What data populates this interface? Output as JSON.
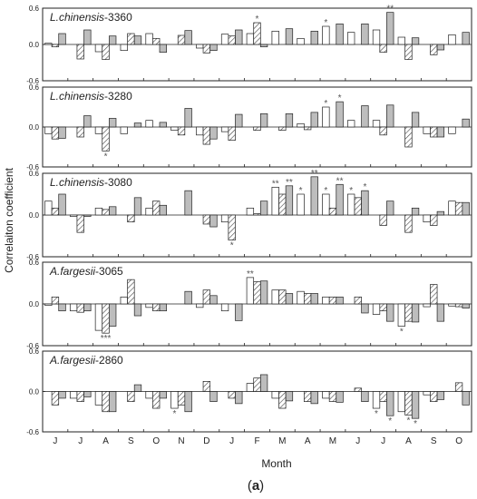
{
  "figure": {
    "ylabel": "Correlaiton coefficient",
    "xlabel": "Month",
    "caption": "(a)",
    "caption_bold_letter": "a",
    "colors": {
      "white": "#ffffff",
      "gray": "#bdbdbd",
      "hatch": "#444444",
      "frame": "#222222",
      "star": "#555555"
    }
  },
  "chart_data": [
    {
      "type": "bar",
      "title": "L.chinensis-3360",
      "title_species": "L.chinensis",
      "title_suffix": "-3360",
      "categories": [
        "J",
        "J",
        "A",
        "S",
        "O",
        "N",
        "D",
        "J",
        "F",
        "M",
        "A",
        "M",
        "J",
        "J",
        "A",
        "S",
        "O"
      ],
      "ylim": [
        -0.6,
        0.6
      ],
      "yticks": [
        "0.6",
        "0.0",
        "-0.6"
      ],
      "series": [
        {
          "pattern": "white",
          "values": [
            0.02,
            0.0,
            -0.12,
            -0.1,
            0.18,
            0.0,
            -0.06,
            0.17,
            0.18,
            0.22,
            0.1,
            0.3,
            0.2,
            0.24,
            0.12,
            0.0,
            0.16
          ]
        },
        {
          "pattern": "hatched",
          "values": [
            -0.04,
            -0.24,
            -0.25,
            0.18,
            0.1,
            0.15,
            -0.14,
            0.14,
            0.36,
            0.0,
            0.0,
            0.0,
            0.0,
            -0.13,
            -0.25,
            -0.17,
            0.0
          ]
        },
        {
          "pattern": "gray",
          "values": [
            0.18,
            0.24,
            0.14,
            0.14,
            -0.13,
            0.23,
            -0.1,
            0.24,
            -0.04,
            0.26,
            0.22,
            0.34,
            0.34,
            0.53,
            0.11,
            -0.09,
            0.2
          ]
        }
      ],
      "significance": [
        {
          "category_index": 8,
          "series": 1,
          "label": "*"
        },
        {
          "category_index": 11,
          "series": 0,
          "label": "*"
        },
        {
          "category_index": 13,
          "series": 2,
          "label": "**"
        }
      ]
    },
    {
      "type": "bar",
      "title": "L.chinensis-3280",
      "title_species": "L.chinensis",
      "title_suffix": "-3280",
      "categories": [
        "J",
        "J",
        "A",
        "S",
        "O",
        "N",
        "D",
        "J",
        "F",
        "M",
        "A",
        "M",
        "J",
        "J",
        "A",
        "S",
        "O"
      ],
      "ylim": [
        -0.6,
        0.6
      ],
      "yticks": [
        "0.6",
        "0.0",
        "-0.6"
      ],
      "series": [
        {
          "pattern": "white",
          "values": [
            -0.1,
            0.0,
            -0.1,
            -0.1,
            0.1,
            -0.05,
            -0.12,
            -0.07,
            0.0,
            0.0,
            0.05,
            0.3,
            0.1,
            0.1,
            0.0,
            -0.1,
            -0.1
          ]
        },
        {
          "pattern": "hatched",
          "values": [
            -0.18,
            -0.15,
            -0.36,
            0.0,
            0.0,
            -0.12,
            -0.26,
            -0.2,
            -0.05,
            -0.05,
            -0.04,
            0.0,
            0.0,
            -0.12,
            -0.3,
            -0.15,
            0.0
          ]
        },
        {
          "pattern": "gray",
          "values": [
            -0.17,
            0.17,
            0.13,
            0.06,
            0.07,
            0.28,
            -0.18,
            0.19,
            0.2,
            0.2,
            0.22,
            0.38,
            0.32,
            0.33,
            0.22,
            -0.15,
            0.12
          ]
        }
      ],
      "significance": [
        {
          "category_index": 2,
          "series": 1,
          "label": "*"
        },
        {
          "category_index": 11,
          "series": 0,
          "label": "*"
        },
        {
          "category_index": 11,
          "series": 2,
          "label": "*"
        }
      ]
    },
    {
      "type": "bar",
      "title": "L.chinensis-3080",
      "title_species": "L.chinensis",
      "title_suffix": "-3080",
      "categories": [
        "J",
        "J",
        "A",
        "S",
        "O",
        "N",
        "D",
        "J",
        "F",
        "M",
        "A",
        "M",
        "J",
        "J",
        "A",
        "S",
        "O"
      ],
      "ylim": [
        -0.6,
        0.6
      ],
      "yticks": [
        "0.6",
        "0.0",
        "-0.6"
      ],
      "series": [
        {
          "pattern": "white",
          "values": [
            0.2,
            -0.02,
            0.1,
            0.0,
            0.1,
            0.0,
            0.0,
            -0.1,
            0.1,
            0.4,
            0.3,
            0.3,
            0.3,
            0.0,
            0.0,
            -0.1,
            0.2
          ]
        },
        {
          "pattern": "hatched",
          "values": [
            0.1,
            -0.25,
            0.08,
            -0.1,
            0.2,
            0.0,
            -0.13,
            -0.36,
            0.02,
            0.3,
            0.0,
            0.1,
            0.25,
            -0.15,
            -0.25,
            -0.15,
            0.18
          ]
        },
        {
          "pattern": "gray",
          "values": [
            0.3,
            -0.02,
            0.12,
            0.25,
            0.14,
            0.35,
            -0.17,
            0.0,
            0.2,
            0.42,
            0.55,
            0.44,
            0.35,
            0.2,
            0.1,
            0.05,
            0.18
          ]
        }
      ],
      "significance": [
        {
          "category_index": 7,
          "series": 1,
          "label": "*"
        },
        {
          "category_index": 9,
          "series": 0,
          "label": "**"
        },
        {
          "category_index": 9,
          "series": 2,
          "label": "**"
        },
        {
          "category_index": 10,
          "series": 0,
          "label": "*"
        },
        {
          "category_index": 10,
          "series": 2,
          "label": "**"
        },
        {
          "category_index": 11,
          "series": 0,
          "label": "*"
        },
        {
          "category_index": 11,
          "series": 2,
          "label": "**"
        },
        {
          "category_index": 12,
          "series": 0,
          "label": "*"
        },
        {
          "category_index": 12,
          "series": 2,
          "label": "*"
        }
      ]
    },
    {
      "type": "bar",
      "title": "A.fargesii-3065",
      "title_species": "A.fargesii",
      "title_suffix": "-3065",
      "categories": [
        "J",
        "J",
        "A",
        "S",
        "O",
        "N",
        "D",
        "J",
        "F",
        "M",
        "A",
        "M",
        "J",
        "J",
        "A",
        "S",
        "O"
      ],
      "ylim": [
        -0.6,
        0.6
      ],
      "yticks": [
        "0.6",
        "0.0",
        "-0.6"
      ],
      "series": [
        {
          "pattern": "white",
          "values": [
            -0.02,
            -0.1,
            -0.38,
            0.1,
            -0.05,
            0.0,
            -0.05,
            -0.1,
            0.38,
            0.2,
            0.18,
            0.1,
            0.0,
            -0.15,
            -0.32,
            -0.04,
            -0.03
          ]
        },
        {
          "pattern": "hatched",
          "values": [
            0.1,
            -0.12,
            -0.42,
            0.35,
            -0.1,
            0.0,
            0.2,
            0.0,
            0.32,
            0.2,
            0.15,
            0.1,
            0.1,
            -0.1,
            -0.25,
            0.28,
            -0.04
          ]
        },
        {
          "pattern": "gray",
          "values": [
            -0.1,
            -0.1,
            -0.32,
            -0.17,
            -0.1,
            0.18,
            0.12,
            -0.24,
            0.33,
            0.15,
            0.15,
            0.1,
            -0.13,
            -0.25,
            -0.26,
            -0.25,
            -0.06
          ]
        }
      ],
      "significance": [
        {
          "category_index": 2,
          "series": 1,
          "label": "***"
        },
        {
          "category_index": 8,
          "series": 0,
          "label": "**"
        },
        {
          "category_index": 14,
          "series": 0,
          "label": "*"
        }
      ]
    },
    {
      "type": "bar",
      "title": "A.fargesii-2860",
      "title_species": "A.fargesii",
      "title_suffix": "-2860",
      "categories": [
        "J",
        "J",
        "A",
        "S",
        "O",
        "N",
        "D",
        "J",
        "F",
        "M",
        "A",
        "M",
        "J",
        "J",
        "A",
        "S",
        "O"
      ],
      "ylim": [
        -0.6,
        0.6
      ],
      "yticks": [
        "0.6",
        "0.0",
        "-0.6"
      ],
      "series": [
        {
          "pattern": "white",
          "values": [
            0.0,
            -0.1,
            -0.2,
            0.0,
            -0.1,
            -0.25,
            0.0,
            0.0,
            0.12,
            -0.1,
            0.0,
            -0.1,
            0.0,
            -0.25,
            -0.3,
            -0.05,
            0.0
          ]
        },
        {
          "pattern": "hatched",
          "values": [
            -0.2,
            -0.15,
            -0.3,
            -0.15,
            -0.25,
            -0.2,
            0.15,
            -0.1,
            0.2,
            -0.25,
            -0.15,
            -0.15,
            0.05,
            -0.15,
            -0.35,
            -0.15,
            0.13
          ]
        },
        {
          "pattern": "gray",
          "values": [
            -0.1,
            -0.08,
            -0.3,
            0.1,
            -0.1,
            -0.3,
            -0.15,
            -0.18,
            0.25,
            -0.14,
            -0.18,
            -0.16,
            -0.15,
            -0.36,
            -0.4,
            -0.12,
            -0.2
          ]
        }
      ],
      "significance": [
        {
          "category_index": 5,
          "series": 0,
          "label": "*"
        },
        {
          "category_index": 13,
          "series": 0,
          "label": "*"
        },
        {
          "category_index": 13,
          "series": 2,
          "label": "*"
        },
        {
          "category_index": 14,
          "series": 1,
          "label": "*"
        },
        {
          "category_index": 14,
          "series": 2,
          "label": "*"
        }
      ]
    }
  ]
}
